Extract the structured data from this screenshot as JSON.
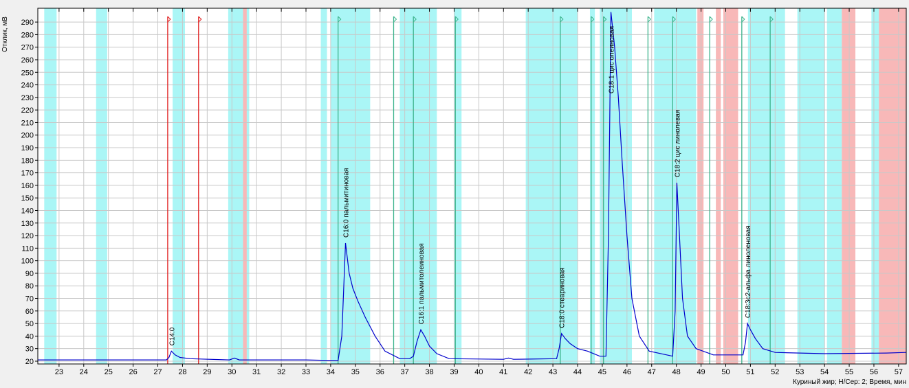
{
  "chart_data": {
    "type": "line",
    "y_label": "Отклик, мВ",
    "footer": "Куриный жир;   Н/Сер: 2;   Время, мин",
    "xlim": [
      22.14,
      57.31
    ],
    "ylim": [
      17.8,
      301
    ],
    "xticks": [
      23,
      24,
      25,
      26,
      27,
      28,
      29,
      30,
      31,
      32,
      33,
      34,
      35,
      36,
      37,
      38,
      39,
      40,
      41,
      42,
      43,
      44,
      45,
      46,
      47,
      48,
      49,
      50,
      51,
      52,
      53,
      54,
      55,
      56,
      57
    ],
    "yticks": [
      20,
      30,
      40,
      50,
      60,
      70,
      80,
      90,
      100,
      110,
      120,
      130,
      140,
      150,
      160,
      170,
      180,
      190,
      200,
      210,
      220,
      230,
      240,
      250,
      260,
      270,
      280,
      290
    ],
    "grid": true,
    "series": [
      {
        "color": "#0000cc",
        "x": [
          22.14,
          27.35,
          27.45,
          27.55,
          27.7,
          27.9,
          28.3,
          29.9,
          30.1,
          30.3,
          33.0,
          34.3,
          34.45,
          34.6,
          34.75,
          34.9,
          35.1,
          35.4,
          35.8,
          36.2,
          36.8,
          37.2,
          37.35,
          37.5,
          37.65,
          37.8,
          38.0,
          38.3,
          38.8,
          41.0,
          41.2,
          41.4,
          43.15,
          43.25,
          43.35,
          43.5,
          43.7,
          44.0,
          44.4,
          44.9,
          45.15,
          45.25,
          45.35,
          45.5,
          45.65,
          45.8,
          46.0,
          46.2,
          46.5,
          46.9,
          47.85,
          47.95,
          48.02,
          48.1,
          48.25,
          48.45,
          48.8,
          49.5,
          50.7,
          50.8,
          50.88,
          51.0,
          51.2,
          51.5,
          52.0,
          54.0,
          56.5,
          57.31
        ],
        "values": [
          21,
          21,
          23,
          28,
          25,
          23,
          22,
          21,
          22.5,
          21,
          21,
          20.5,
          40,
          114,
          90,
          78,
          68,
          55,
          40,
          28,
          22,
          22,
          24,
          36,
          45,
          40,
          32,
          26,
          22,
          21.5,
          22.5,
          21.5,
          22,
          30,
          42,
          38,
          34,
          30,
          28,
          24,
          24,
          120,
          298,
          270,
          230,
          180,
          120,
          70,
          40,
          28,
          24,
          60,
          162,
          130,
          70,
          40,
          30,
          25,
          25,
          35,
          50,
          45,
          38,
          30,
          27,
          26,
          26.5,
          27
        ]
      }
    ],
    "bands": [
      {
        "color": "#aaf6f6",
        "ranges": [
          [
            22.4,
            22.9
          ],
          [
            24.5,
            24.95
          ],
          [
            27.6,
            28.1
          ],
          [
            29.85,
            30.7
          ],
          [
            33.6,
            33.85
          ],
          [
            34.0,
            35.6
          ],
          [
            36.8,
            38.3
          ],
          [
            39.0,
            39.3
          ],
          [
            41.9,
            44.0
          ],
          [
            44.5,
            44.7
          ],
          [
            44.9,
            46.2
          ],
          [
            47.1,
            48.8
          ],
          [
            50.9,
            52.4
          ],
          [
            52.9,
            54.0
          ],
          [
            54.1,
            54.7
          ],
          [
            55.9,
            56.2
          ]
        ]
      },
      {
        "color": "#f8b8b8",
        "ranges": [
          [
            30.45,
            30.6
          ],
          [
            48.85,
            49.1
          ],
          [
            49.6,
            49.8
          ],
          [
            49.9,
            50.5
          ],
          [
            54.7,
            55.25
          ],
          [
            56.2,
            57.31
          ]
        ]
      }
    ],
    "markers": [
      {
        "color": "#e02020",
        "x": [
          27.4,
          28.65
        ]
      },
      {
        "color": "#3cb38c",
        "x": [
          34.3,
          36.55,
          37.35,
          39.05,
          43.3,
          44.55,
          45.05,
          46.85,
          47.85,
          49.35,
          50.65,
          51.8
        ]
      }
    ],
    "annotations": [
      {
        "text": "C14:0",
        "x": 27.55
      },
      {
        "text": "C16:0 пальмитиновая",
        "x": 34.6
      },
      {
        "text": "C16:1 пальмитолеиновая",
        "x": 37.65
      },
      {
        "text": "C18:0 стеариновая",
        "x": 43.35
      },
      {
        "text": "C18:1 цис олеиновая",
        "x": 45.35
      },
      {
        "text": "C18:2 цис линолевая",
        "x": 48.02
      },
      {
        "text": "C18:3c2-альфа линоленовая",
        "x": 50.88
      }
    ]
  }
}
